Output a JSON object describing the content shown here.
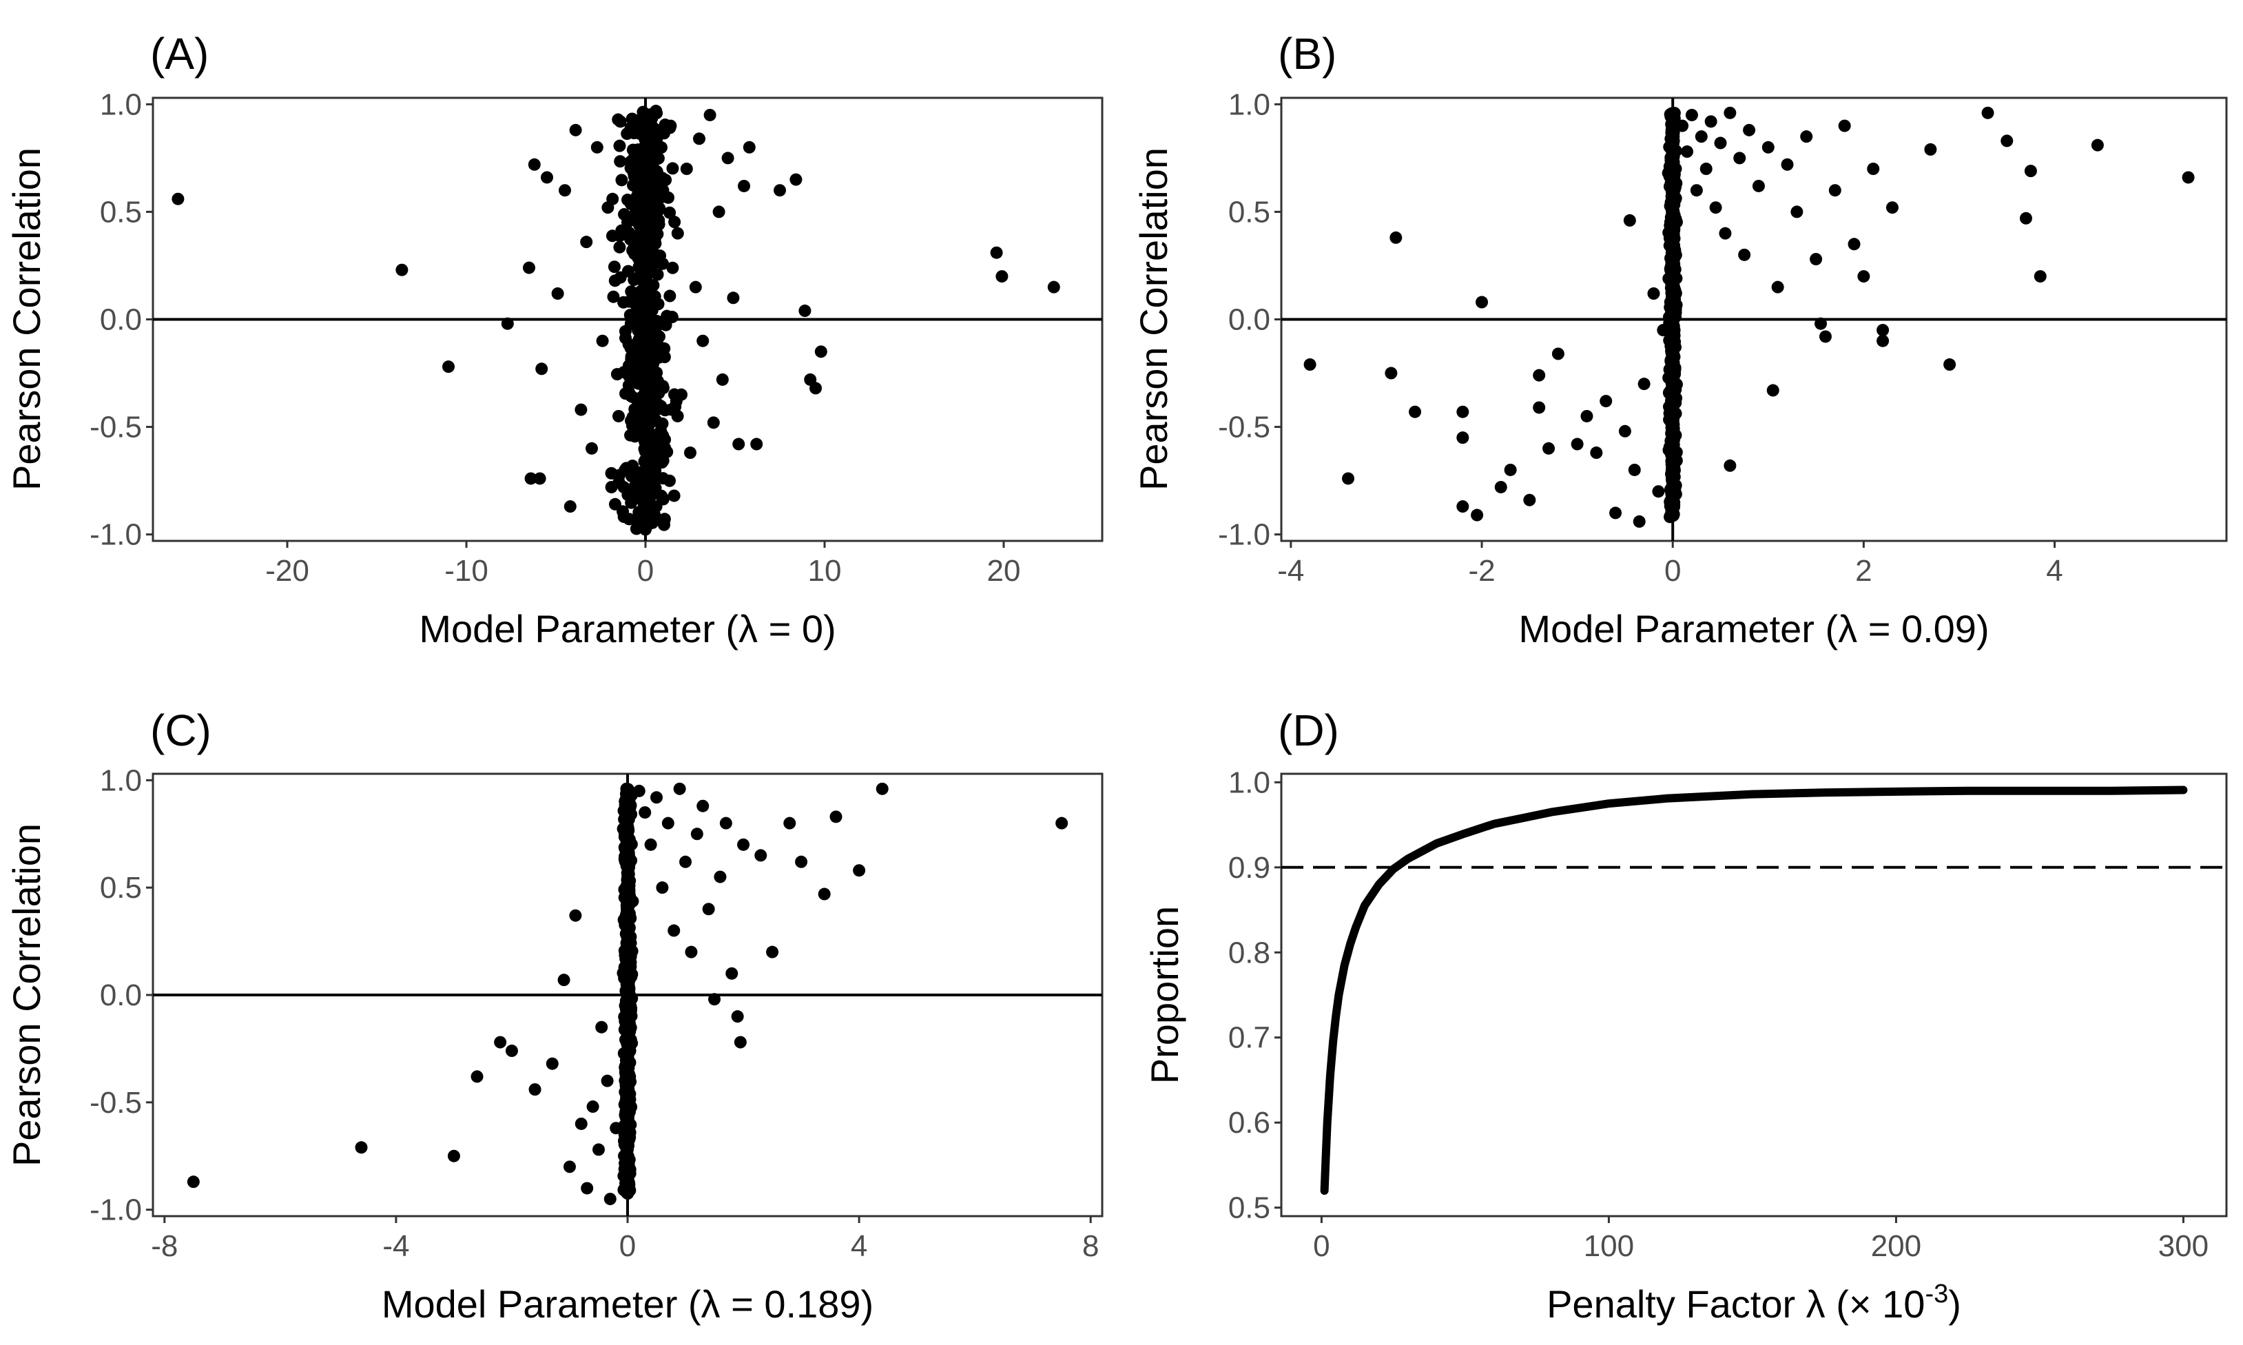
{
  "chart_data": [
    {
      "id": "A",
      "type": "scatter",
      "label": "(A)",
      "xlabel": "Model Parameter (λ = 0)",
      "ylabel": "Pearson Correlation",
      "xlim": [
        -27.5,
        25.5
      ],
      "ylim": [
        -1.03,
        1.03
      ],
      "xticks": [
        -20,
        -10,
        0,
        10,
        20
      ],
      "xtick_labels": [
        "-20",
        "-10",
        "0",
        "10",
        "20"
      ],
      "yticks": [
        1.0,
        0.5,
        0.0,
        -0.5,
        -1.0
      ],
      "ytick_labels": [
        "1.0",
        "0.5",
        "0.0",
        "-0.5",
        "-1.0"
      ],
      "hlines": [
        0
      ],
      "vlines": [
        0
      ],
      "dense_band": {
        "x": [
          -1.2,
          1.2
        ],
        "y": [
          -0.98,
          0.97
        ]
      },
      "points": [
        {
          "x": -26.1,
          "y": 0.56
        },
        {
          "x": -13.6,
          "y": 0.23
        },
        {
          "x": -11.0,
          "y": -0.22
        },
        {
          "x": -7.7,
          "y": -0.02
        },
        {
          "x": -6.4,
          "y": -0.74
        },
        {
          "x": -5.9,
          "y": -0.74
        },
        {
          "x": -6.5,
          "y": 0.24
        },
        {
          "x": -6.2,
          "y": 0.72
        },
        {
          "x": -5.8,
          "y": -0.23
        },
        {
          "x": -5.5,
          "y": 0.66
        },
        {
          "x": -4.9,
          "y": 0.12
        },
        {
          "x": -4.5,
          "y": 0.6
        },
        {
          "x": -4.2,
          "y": -0.87
        },
        {
          "x": -3.9,
          "y": 0.88
        },
        {
          "x": -3.6,
          "y": -0.42
        },
        {
          "x": -3.3,
          "y": 0.36
        },
        {
          "x": -3.0,
          "y": -0.6
        },
        {
          "x": -2.7,
          "y": 0.8
        },
        {
          "x": -2.4,
          "y": -0.1
        },
        {
          "x": -2.1,
          "y": 0.52
        },
        {
          "x": -1.9,
          "y": -0.78
        },
        {
          "x": -1.7,
          "y": 0.18
        },
        {
          "x": -1.5,
          "y": -0.45
        },
        {
          "x": -1.4,
          "y": 0.92
        },
        {
          "x": 1.4,
          "y": 0.9
        },
        {
          "x": 1.6,
          "y": -0.82
        },
        {
          "x": 1.8,
          "y": 0.4
        },
        {
          "x": 2.0,
          "y": -0.35
        },
        {
          "x": 2.3,
          "y": 0.7
        },
        {
          "x": 2.5,
          "y": -0.62
        },
        {
          "x": 2.8,
          "y": 0.15
        },
        {
          "x": 3.0,
          "y": 0.84
        },
        {
          "x": 3.2,
          "y": -0.1
        },
        {
          "x": 3.6,
          "y": 0.95
        },
        {
          "x": 3.8,
          "y": -0.48
        },
        {
          "x": 4.1,
          "y": 0.5
        },
        {
          "x": 4.3,
          "y": -0.28
        },
        {
          "x": 4.6,
          "y": 0.75
        },
        {
          "x": 4.9,
          "y": 0.1
        },
        {
          "x": 5.2,
          "y": -0.58
        },
        {
          "x": 5.5,
          "y": 0.62
        },
        {
          "x": 5.8,
          "y": 0.8
        },
        {
          "x": 6.2,
          "y": -0.58
        },
        {
          "x": 7.5,
          "y": 0.6
        },
        {
          "x": 8.4,
          "y": 0.65
        },
        {
          "x": 8.9,
          "y": 0.04
        },
        {
          "x": 9.2,
          "y": -0.28
        },
        {
          "x": 9.5,
          "y": -0.32
        },
        {
          "x": 9.8,
          "y": -0.15
        },
        {
          "x": 19.6,
          "y": 0.31
        },
        {
          "x": 19.9,
          "y": 0.2
        },
        {
          "x": 22.8,
          "y": 0.15
        }
      ]
    },
    {
      "id": "B",
      "type": "scatter",
      "label": "(B)",
      "xlabel": "Model Parameter (λ = 0.09)",
      "ylabel": "Pearson Correlation",
      "xlim": [
        -4.1,
        5.8
      ],
      "ylim": [
        -1.03,
        1.03
      ],
      "xticks": [
        -4,
        -2,
        0,
        2,
        4
      ],
      "xtick_labels": [
        "-4",
        "-2",
        "0",
        "2",
        "4"
      ],
      "yticks": [
        1.0,
        0.5,
        0.0,
        -0.5,
        -1.0
      ],
      "ytick_labels": [
        "1.0",
        "0.5",
        "0.0",
        "-0.5",
        "-1.0"
      ],
      "hlines": [
        0
      ],
      "vlines": [
        0
      ],
      "dense_band": {
        "x": [
          -0.03,
          0.03
        ],
        "y": [
          -0.92,
          0.96
        ]
      },
      "points": [
        {
          "x": -3.8,
          "y": -0.21
        },
        {
          "x": -3.4,
          "y": -0.74
        },
        {
          "x": -2.9,
          "y": 0.38
        },
        {
          "x": -2.95,
          "y": -0.25
        },
        {
          "x": -2.7,
          "y": -0.43
        },
        {
          "x": -2.2,
          "y": -0.43
        },
        {
          "x": -2.2,
          "y": -0.55
        },
        {
          "x": -2.2,
          "y": -0.87
        },
        {
          "x": -2.05,
          "y": -0.91
        },
        {
          "x": -2.0,
          "y": 0.08
        },
        {
          "x": -1.8,
          "y": -0.78
        },
        {
          "x": -1.7,
          "y": -0.7
        },
        {
          "x": -1.5,
          "y": -0.84
        },
        {
          "x": -1.4,
          "y": -0.26
        },
        {
          "x": -1.4,
          "y": -0.41
        },
        {
          "x": -1.3,
          "y": -0.6
        },
        {
          "x": -1.2,
          "y": -0.16
        },
        {
          "x": -1.0,
          "y": -0.58
        },
        {
          "x": -0.9,
          "y": -0.45
        },
        {
          "x": -0.8,
          "y": -0.62
        },
        {
          "x": -0.7,
          "y": -0.38
        },
        {
          "x": -0.6,
          "y": -0.9
        },
        {
          "x": -0.5,
          "y": -0.52
        },
        {
          "x": -0.45,
          "y": 0.46
        },
        {
          "x": -0.4,
          "y": -0.7
        },
        {
          "x": -0.35,
          "y": -0.94
        },
        {
          "x": -0.3,
          "y": -0.3
        },
        {
          "x": -0.2,
          "y": 0.12
        },
        {
          "x": -0.15,
          "y": -0.8
        },
        {
          "x": -0.1,
          "y": -0.05
        },
        {
          "x": 0.1,
          "y": 0.9
        },
        {
          "x": 0.15,
          "y": 0.78
        },
        {
          "x": 0.2,
          "y": 0.95
        },
        {
          "x": 0.25,
          "y": 0.6
        },
        {
          "x": 0.3,
          "y": 0.85
        },
        {
          "x": 0.35,
          "y": 0.7
        },
        {
          "x": 0.4,
          "y": 0.92
        },
        {
          "x": 0.45,
          "y": 0.52
        },
        {
          "x": 0.5,
          "y": 0.82
        },
        {
          "x": 0.55,
          "y": 0.4
        },
        {
          "x": 0.6,
          "y": 0.96
        },
        {
          "x": 0.6,
          "y": -0.68
        },
        {
          "x": 0.7,
          "y": 0.75
        },
        {
          "x": 0.75,
          "y": 0.3
        },
        {
          "x": 0.8,
          "y": 0.88
        },
        {
          "x": 0.9,
          "y": 0.62
        },
        {
          "x": 1.0,
          "y": 0.8
        },
        {
          "x": 1.05,
          "y": -0.33
        },
        {
          "x": 1.1,
          "y": 0.15
        },
        {
          "x": 1.2,
          "y": 0.72
        },
        {
          "x": 1.3,
          "y": 0.5
        },
        {
          "x": 1.4,
          "y": 0.85
        },
        {
          "x": 1.5,
          "y": 0.28
        },
        {
          "x": 1.55,
          "y": -0.02
        },
        {
          "x": 1.6,
          "y": -0.08
        },
        {
          "x": 1.7,
          "y": 0.6
        },
        {
          "x": 1.8,
          "y": 0.9
        },
        {
          "x": 1.9,
          "y": 0.35
        },
        {
          "x": 2.0,
          "y": 0.2
        },
        {
          "x": 2.1,
          "y": 0.7
        },
        {
          "x": 2.2,
          "y": -0.1
        },
        {
          "x": 2.2,
          "y": -0.05
        },
        {
          "x": 2.3,
          "y": 0.52
        },
        {
          "x": 2.7,
          "y": 0.79
        },
        {
          "x": 2.9,
          "y": -0.21
        },
        {
          "x": 3.3,
          "y": 0.96
        },
        {
          "x": 3.5,
          "y": 0.83
        },
        {
          "x": 3.7,
          "y": 0.47
        },
        {
          "x": 3.75,
          "y": 0.69
        },
        {
          "x": 3.85,
          "y": 0.2
        },
        {
          "x": 4.45,
          "y": 0.81
        },
        {
          "x": 5.4,
          "y": 0.66
        }
      ]
    },
    {
      "id": "C",
      "type": "scatter",
      "label": "(C)",
      "xlabel": "Model Parameter (λ = 0.189)",
      "ylabel": "Pearson Correlation",
      "xlim": [
        -8.2,
        8.2
      ],
      "ylim": [
        -1.03,
        1.03
      ],
      "xticks": [
        -8,
        -4,
        0,
        4,
        8
      ],
      "xtick_labels": [
        "-8",
        "-4",
        "0",
        "4",
        "8"
      ],
      "yticks": [
        1.0,
        0.5,
        0.0,
        -0.5,
        -1.0
      ],
      "ytick_labels": [
        "1.0",
        "0.5",
        "0.0",
        "-0.5",
        "-1.0"
      ],
      "hlines": [
        0
      ],
      "vlines": [
        0
      ],
      "dense_band": {
        "x": [
          -0.05,
          0.05
        ],
        "y": [
          -0.93,
          0.96
        ]
      },
      "points": [
        {
          "x": -7.5,
          "y": -0.87
        },
        {
          "x": -4.6,
          "y": -0.71
        },
        {
          "x": -3.0,
          "y": -0.75
        },
        {
          "x": -2.6,
          "y": -0.38
        },
        {
          "x": -2.2,
          "y": -0.22
        },
        {
          "x": -2.0,
          "y": -0.26
        },
        {
          "x": -1.6,
          "y": -0.44
        },
        {
          "x": -1.3,
          "y": -0.32
        },
        {
          "x": -1.1,
          "y": 0.07
        },
        {
          "x": -1.0,
          "y": -0.8
        },
        {
          "x": -0.9,
          "y": 0.37
        },
        {
          "x": -0.8,
          "y": -0.6
        },
        {
          "x": -0.7,
          "y": -0.9
        },
        {
          "x": -0.6,
          "y": -0.52
        },
        {
          "x": -0.5,
          "y": -0.72
        },
        {
          "x": -0.45,
          "y": -0.15
        },
        {
          "x": -0.35,
          "y": -0.4
        },
        {
          "x": -0.3,
          "y": -0.95
        },
        {
          "x": -0.2,
          "y": -0.62
        },
        {
          "x": 0.2,
          "y": 0.95
        },
        {
          "x": 0.3,
          "y": 0.85
        },
        {
          "x": 0.4,
          "y": 0.7
        },
        {
          "x": 0.5,
          "y": 0.92
        },
        {
          "x": 0.6,
          "y": 0.5
        },
        {
          "x": 0.7,
          "y": 0.8
        },
        {
          "x": 0.8,
          "y": 0.3
        },
        {
          "x": 0.9,
          "y": 0.96
        },
        {
          "x": 1.0,
          "y": 0.62
        },
        {
          "x": 1.1,
          "y": 0.2
        },
        {
          "x": 1.2,
          "y": 0.75
        },
        {
          "x": 1.3,
          "y": 0.88
        },
        {
          "x": 1.4,
          "y": 0.4
        },
        {
          "x": 1.5,
          "y": -0.02
        },
        {
          "x": 1.6,
          "y": 0.55
        },
        {
          "x": 1.7,
          "y": 0.8
        },
        {
          "x": 1.8,
          "y": 0.1
        },
        {
          "x": 1.9,
          "y": -0.1
        },
        {
          "x": 1.95,
          "y": -0.22
        },
        {
          "x": 2.0,
          "y": 0.7
        },
        {
          "x": 2.3,
          "y": 0.65
        },
        {
          "x": 2.5,
          "y": 0.2
        },
        {
          "x": 2.8,
          "y": 0.8
        },
        {
          "x": 3.0,
          "y": 0.62
        },
        {
          "x": 3.4,
          "y": 0.47
        },
        {
          "x": 3.6,
          "y": 0.83
        },
        {
          "x": 4.0,
          "y": 0.58
        },
        {
          "x": 4.4,
          "y": 0.96
        },
        {
          "x": 7.5,
          "y": 0.8
        }
      ]
    },
    {
      "id": "D",
      "type": "line",
      "label": "(D)",
      "xlabel": "Penalty Factor λ (× 10",
      "xlabel_sup": "-3",
      "xlabel_end": ")",
      "ylabel": "Proportion",
      "xlim": [
        -14,
        315
      ],
      "ylim": [
        0.49,
        1.01
      ],
      "xticks": [
        0,
        100,
        200,
        300
      ],
      "xtick_labels": [
        "0",
        "100",
        "200",
        "300"
      ],
      "yticks": [
        1.0,
        0.9,
        0.8,
        0.7,
        0.6,
        0.5
      ],
      "ytick_labels": [
        "1.0",
        "0.9",
        "0.8",
        "0.7",
        "0.6",
        "0.5"
      ],
      "hlines_dashed": [
        0.9
      ],
      "series": [
        {
          "name": "proportion",
          "x": [
            1,
            1.5,
            2,
            3,
            4,
            5,
            6,
            8,
            10,
            12,
            15,
            20,
            25,
            30,
            40,
            50,
            60,
            70,
            80,
            90,
            100,
            120,
            150,
            175,
            200,
            225,
            250,
            275,
            300
          ],
          "y": [
            0.52,
            0.56,
            0.6,
            0.655,
            0.695,
            0.725,
            0.75,
            0.785,
            0.81,
            0.83,
            0.855,
            0.88,
            0.898,
            0.91,
            0.928,
            0.94,
            0.951,
            0.958,
            0.965,
            0.97,
            0.975,
            0.981,
            0.986,
            0.988,
            0.989,
            0.99,
            0.99,
            0.99,
            0.991
          ]
        }
      ]
    }
  ]
}
